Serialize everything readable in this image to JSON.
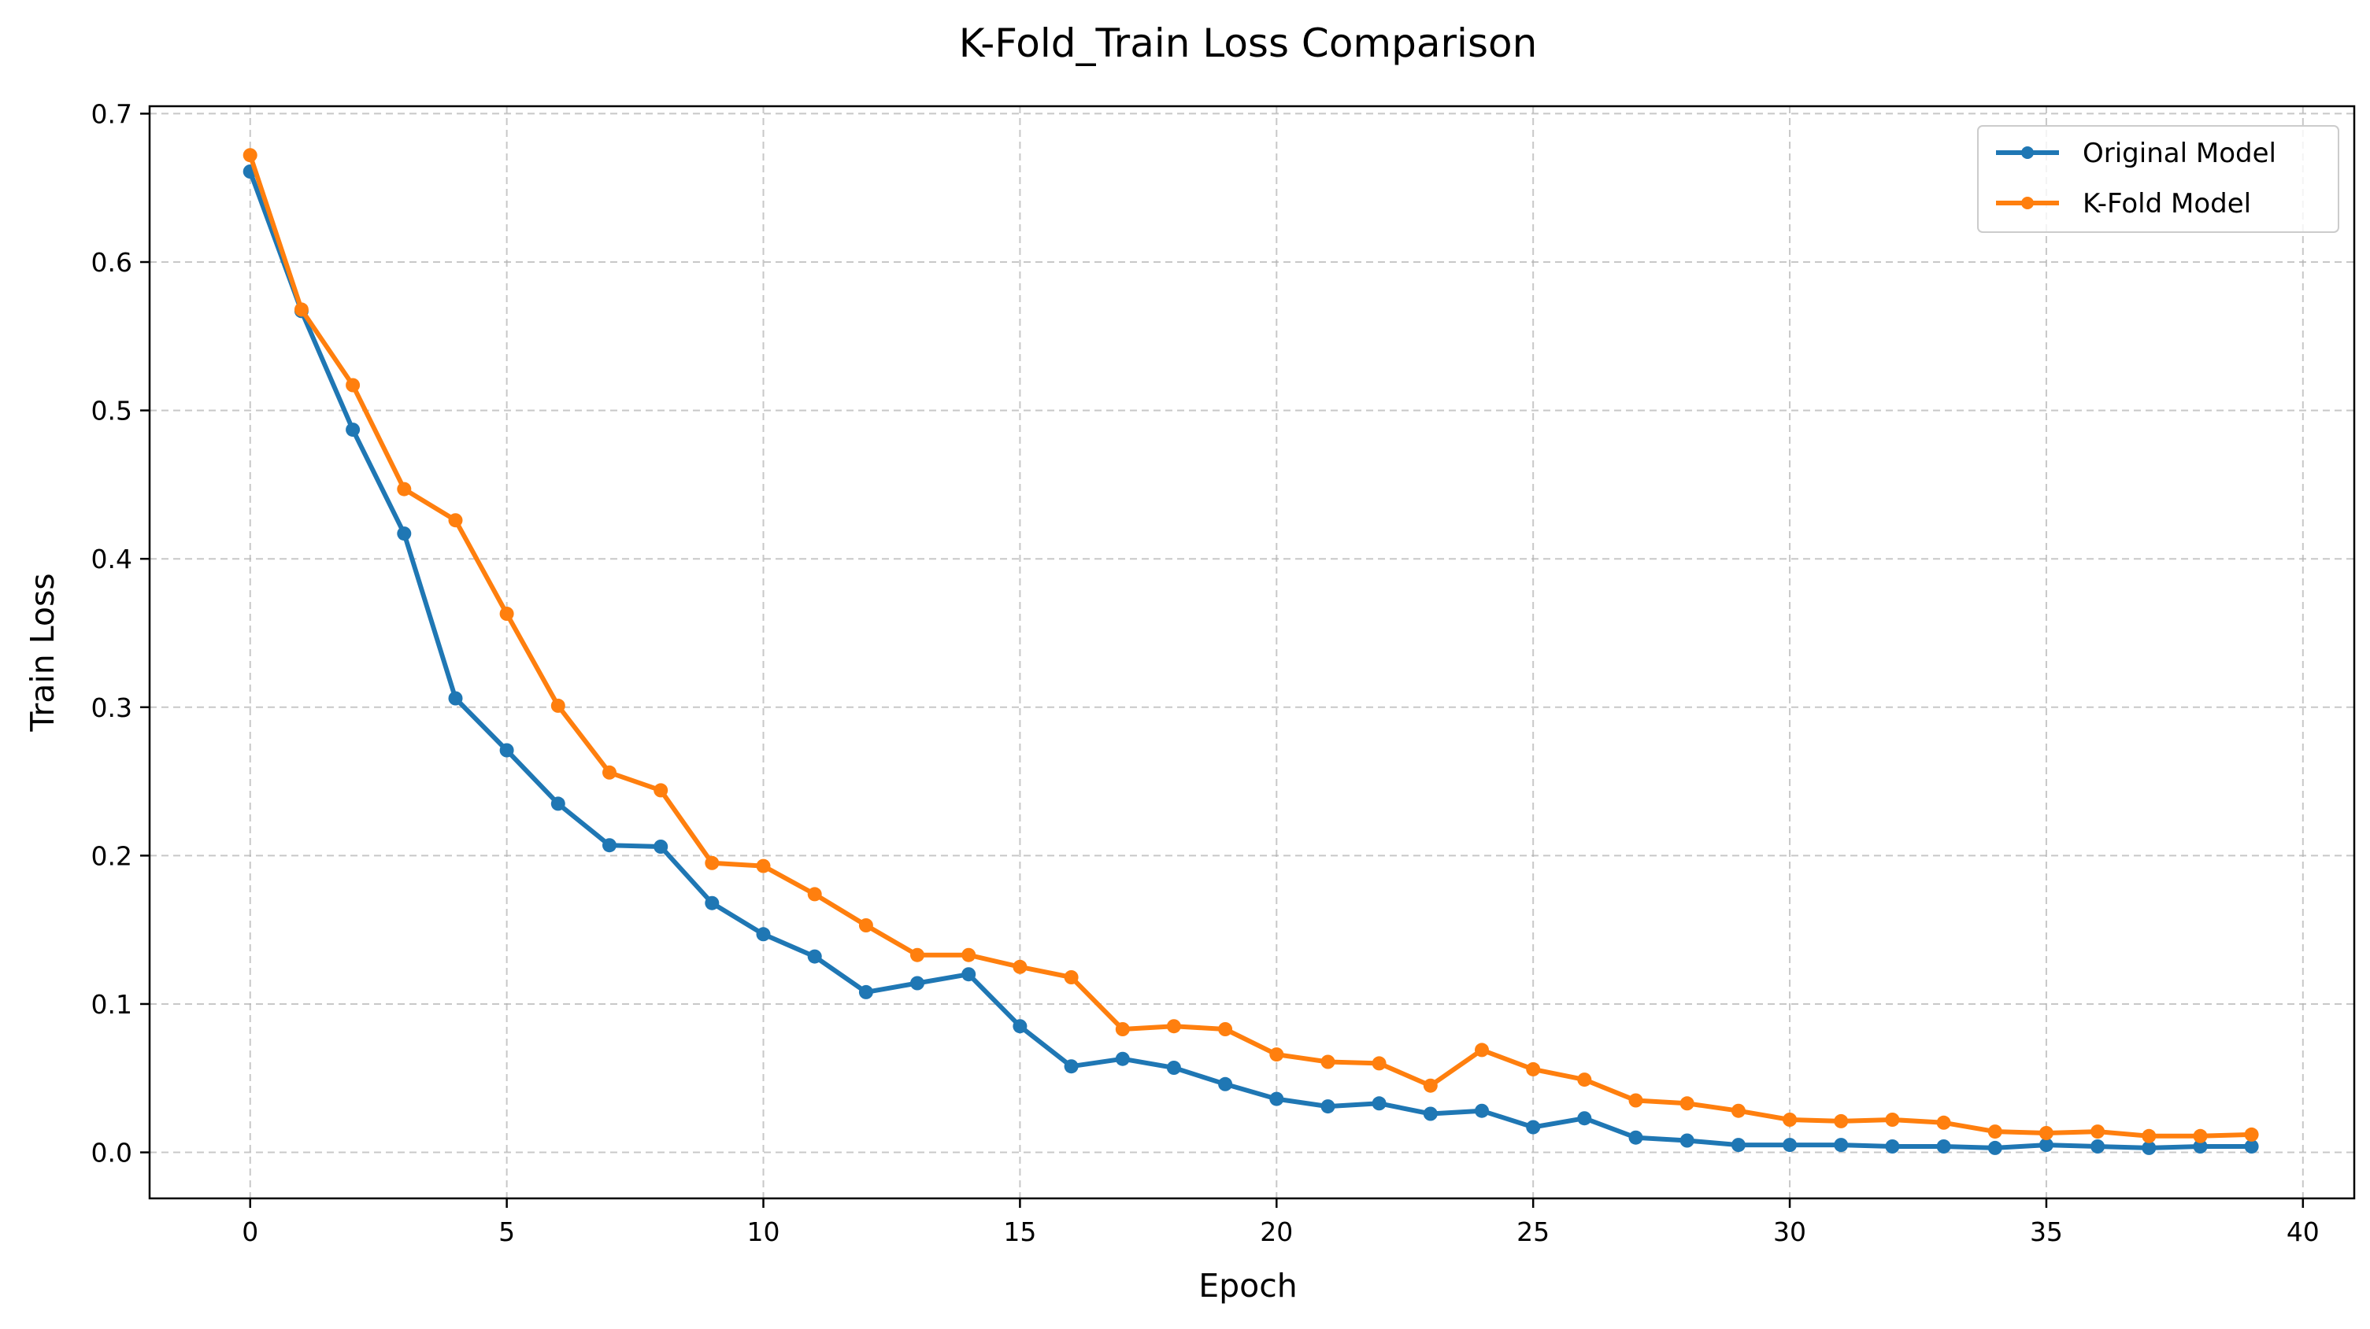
{
  "chart_data": {
    "type": "line",
    "title": "K-Fold_Train Loss Comparison",
    "xlabel": "Epoch",
    "ylabel": "Train Loss",
    "xlim": [
      -1.96,
      41.0
    ],
    "ylim": [
      -0.031,
      0.705
    ],
    "xticks": [
      0,
      5,
      10,
      15,
      20,
      25,
      30,
      35,
      40
    ],
    "yticks": [
      0.0,
      0.1,
      0.2,
      0.3,
      0.4,
      0.5,
      0.6,
      0.7
    ],
    "xtick_labels": [
      "0",
      "5",
      "10",
      "15",
      "20",
      "25",
      "30",
      "35",
      "40"
    ],
    "ytick_labels": [
      "0.0",
      "0.1",
      "0.2",
      "0.3",
      "0.4",
      "0.5",
      "0.6",
      "0.7"
    ],
    "grid": true,
    "grid_style": "dashed",
    "legend_position": "top-right",
    "x": [
      0,
      1,
      2,
      3,
      4,
      5,
      6,
      7,
      8,
      9,
      10,
      11,
      12,
      13,
      14,
      15,
      16,
      17,
      18,
      19,
      20,
      21,
      22,
      23,
      24,
      25,
      26,
      27,
      28,
      29,
      30,
      31,
      32,
      33,
      34,
      35,
      36,
      37,
      38,
      39
    ],
    "series": [
      {
        "name": "Original Model",
        "color": "#1f77b4",
        "values": [
          0.661,
          0.567,
          0.487,
          0.417,
          0.306,
          0.271,
          0.235,
          0.207,
          0.206,
          0.168,
          0.147,
          0.132,
          0.108,
          0.114,
          0.12,
          0.085,
          0.058,
          0.063,
          0.057,
          0.046,
          0.036,
          0.031,
          0.033,
          0.026,
          0.028,
          0.017,
          0.023,
          0.01,
          0.008,
          0.005,
          0.005,
          0.005,
          0.004,
          0.004,
          0.003,
          0.005,
          0.004,
          0.003,
          0.004,
          0.004
        ]
      },
      {
        "name": "K-Fold Model",
        "color": "#ff7f0e",
        "values": [
          0.672,
          0.568,
          0.517,
          0.447,
          0.426,
          0.363,
          0.301,
          0.256,
          0.244,
          0.195,
          0.193,
          0.174,
          0.153,
          0.133,
          0.133,
          0.125,
          0.118,
          0.083,
          0.085,
          0.083,
          0.066,
          0.061,
          0.06,
          0.045,
          0.069,
          0.056,
          0.049,
          0.035,
          0.033,
          0.028,
          0.022,
          0.021,
          0.022,
          0.02,
          0.014,
          0.013,
          0.014,
          0.011,
          0.011,
          0.012
        ]
      }
    ]
  }
}
